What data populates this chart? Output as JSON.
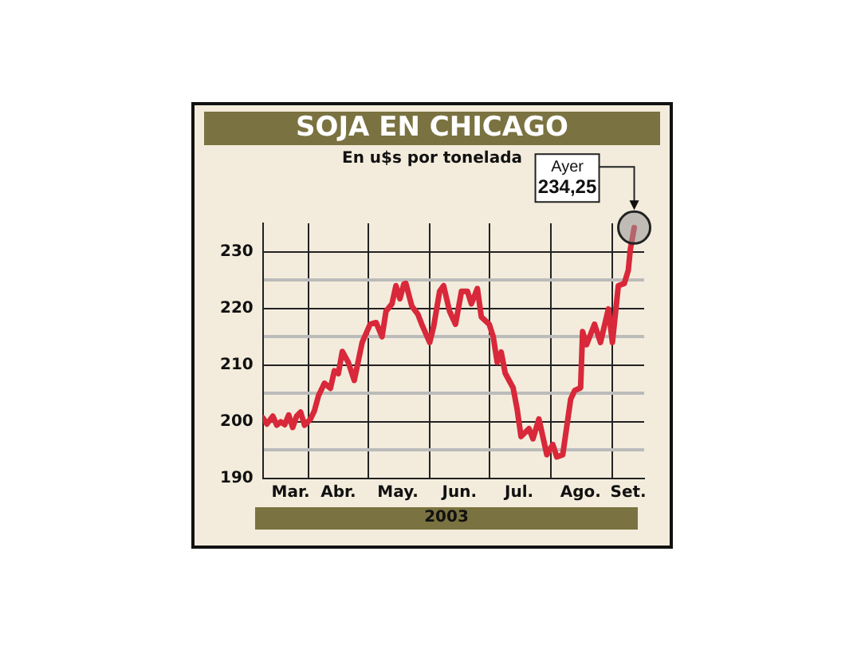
{
  "chart_data": {
    "type": "line",
    "title": "SOJA EN CHICAGO",
    "subtitle": "En u$s por tonelada",
    "xlabel": "2003",
    "x": [
      "2003-03-09",
      "2003-03-11",
      "2003-03-14",
      "2003-03-16",
      "2003-03-18",
      "2003-03-20",
      "2003-03-22",
      "2003-03-24",
      "2003-03-26",
      "2003-03-28",
      "2003-03-30",
      "2003-04-02",
      "2003-04-04",
      "2003-04-06",
      "2003-04-09",
      "2003-04-12",
      "2003-04-14",
      "2003-04-16",
      "2003-04-18",
      "2003-04-21",
      "2003-04-24",
      "2003-04-28",
      "2003-05-02",
      "2003-05-05",
      "2003-05-08",
      "2003-05-10",
      "2003-05-13",
      "2003-05-15",
      "2003-05-17",
      "2003-05-19",
      "2003-05-20",
      "2003-05-23",
      "2003-05-26",
      "2003-05-28",
      "2003-06-01",
      "2003-06-03",
      "2003-06-06",
      "2003-06-08",
      "2003-06-11",
      "2003-06-14",
      "2003-06-17",
      "2003-06-20",
      "2003-06-22",
      "2003-06-25",
      "2003-06-27",
      "2003-07-01",
      "2003-07-03",
      "2003-07-05",
      "2003-07-07",
      "2003-07-09",
      "2003-07-13",
      "2003-07-15",
      "2003-07-17",
      "2003-07-21",
      "2003-07-23",
      "2003-07-26",
      "2003-07-30",
      "2003-08-02",
      "2003-08-04",
      "2003-08-07",
      "2003-08-11",
      "2003-08-13",
      "2003-08-16",
      "2003-08-17",
      "2003-08-19",
      "2003-08-23",
      "2003-08-26",
      "2003-08-30",
      "2003-09-01",
      "2003-09-04",
      "2003-09-07",
      "2003-09-09",
      "2003-09-10",
      "2003-09-12"
    ],
    "series": [
      {
        "color": "#d8283a",
        "values": [
          200.7,
          199.6,
          201,
          199.4,
          200,
          199.5,
          201.2,
          199,
          201,
          201.7,
          199.4,
          200.5,
          202,
          204.6,
          206.8,
          205.9,
          209,
          208.5,
          212.4,
          210.5,
          207.3,
          214,
          217.2,
          217.5,
          215,
          219.5,
          220.8,
          224,
          221.7,
          224.3,
          224.4,
          220.4,
          219,
          217.2,
          214,
          216.8,
          223,
          224,
          219.5,
          217.2,
          223,
          223,
          220.8,
          223.5,
          218.5,
          217.2,
          215,
          210.5,
          212.3,
          208.6,
          206,
          202.3,
          197.4,
          198.8,
          197,
          200.5,
          194.2,
          196,
          193.8,
          194.2,
          204,
          205.5,
          206,
          215.9,
          213.6,
          217.2,
          214,
          219.9,
          214,
          224,
          224.4,
          226.7,
          230.3,
          234.25
        ]
      }
    ],
    "xlim": [
      "2003-03-09",
      "2003-09-17"
    ],
    "xticks": [
      {
        "value": "2003-03-23",
        "label": "Mar."
      },
      {
        "value": "2003-04-01",
        "label": null
      },
      {
        "value": "2003-04-16",
        "label": "Abr."
      },
      {
        "value": "2003-05-01",
        "label": null
      },
      {
        "value": "2003-05-16",
        "label": "May."
      },
      {
        "value": "2003-06-01",
        "label": null
      },
      {
        "value": "2003-06-16",
        "label": "Jun."
      },
      {
        "value": "2003-07-01",
        "label": null
      },
      {
        "value": "2003-07-16",
        "label": "Jul."
      },
      {
        "value": "2003-08-01",
        "label": null
      },
      {
        "value": "2003-08-16",
        "label": "Ago."
      },
      {
        "value": "2003-09-01",
        "label": null
      },
      {
        "value": "2003-09-09",
        "label": "Set."
      }
    ],
    "ylim": [
      190,
      235
    ],
    "yticks": [
      190,
      {
        "value": 195,
        "label": null
      },
      200,
      {
        "value": 205,
        "label": null
      },
      210,
      {
        "value": 215,
        "label": null
      },
      220,
      {
        "value": 225,
        "label": null
      },
      230
    ],
    "grid": true,
    "legend": false,
    "marker": "none",
    "line_style": "solid",
    "annotations": [
      {
        "text": "Ayer 234,25",
        "x": "2003-09-12",
        "y": 234.25
      }
    ]
  }
}
